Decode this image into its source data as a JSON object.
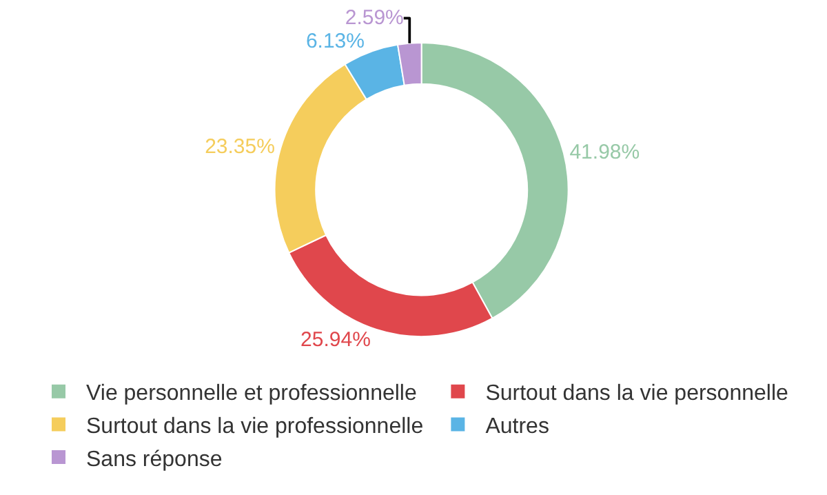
{
  "chart_data": {
    "type": "donut",
    "categories": [
      "Vie personnelle et professionnelle",
      "Surtout dans la vie personnelle",
      "Surtout dans la vie professionnelle",
      "Autres",
      "Sans réponse"
    ],
    "values": [
      41.98,
      25.94,
      23.35,
      6.13,
      2.59
    ],
    "colors": [
      "#97c9a7",
      "#e0474c",
      "#f5cd5c",
      "#5ab4e5",
      "#b996d2"
    ],
    "value_labels": [
      "41.98%",
      "25.94%",
      "23.35%",
      "6.13%",
      "2.59%"
    ],
    "legend": "bottom"
  }
}
